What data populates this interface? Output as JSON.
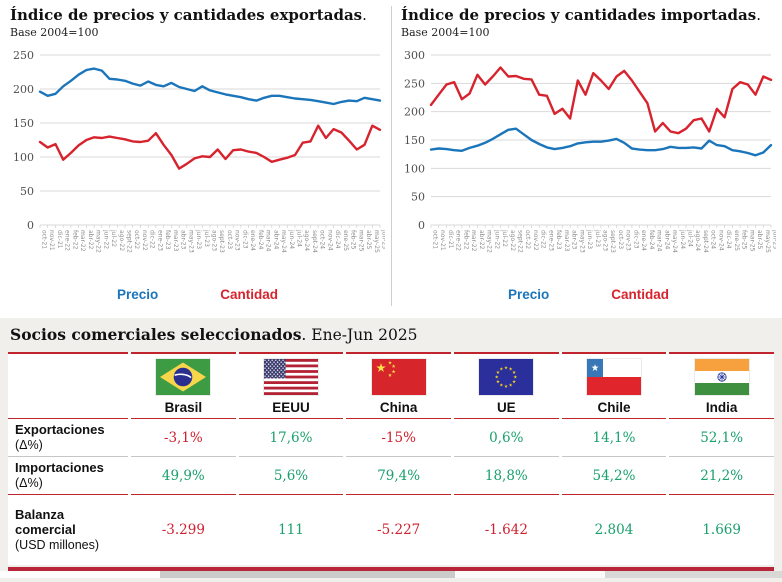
{
  "colors": {
    "precio_blue": "#1b75bb",
    "cantidad_red": "#d7232e",
    "positive_green": "#1aa06d",
    "negative_red": "#cf2130",
    "rule_red": "#c2242e",
    "bottom_bar_red": "#b82538",
    "section_background": "#f0efec"
  },
  "chart_data": [
    {
      "type": "line",
      "title": "Índice de precios y cantidades exportadas.",
      "title_bold": "Índice de precios y cantidades exportadas",
      "title_suffix": ".",
      "subtitle": "Base 2004=100",
      "ylim": [
        0,
        250
      ],
      "ytick": 50,
      "grid": true,
      "legend_position": "bottom",
      "categories": [
        "oct-21",
        "nov-21",
        "dic-21",
        "ene-22",
        "feb-22",
        "mar-22",
        "abr-22",
        "may-22",
        "jun-22",
        "jul-22",
        "ago-22",
        "sept-22",
        "oct-22",
        "nov-22",
        "dic-22",
        "ene-23",
        "feb-23",
        "mar-23",
        "abr-23",
        "may-23",
        "jun-23",
        "jul-23",
        "ago-23",
        "sept-23",
        "oct-23",
        "nov-23",
        "dic-23",
        "ene-24",
        "feb-24",
        "mar-24",
        "abr-24",
        "may-24",
        "jun-24",
        "jul-24",
        "ago-24",
        "sept-24",
        "oct-24",
        "nov-24",
        "dic-24",
        "ene-25",
        "feb-25",
        "mar-25",
        "abr-25",
        "may-25",
        "jun-25"
      ],
      "series": [
        {
          "name": "Precio",
          "color": "#1b75bb",
          "values": [
            196,
            190,
            193,
            204,
            212,
            221,
            228,
            230,
            227,
            215,
            214,
            212,
            208,
            205,
            211,
            206,
            204,
            209,
            203,
            200,
            197,
            204,
            198,
            195,
            192,
            190,
            188,
            185,
            183,
            187,
            190,
            190,
            188,
            186,
            185,
            184,
            182,
            180,
            178,
            181,
            183,
            182,
            187,
            185,
            183
          ]
        },
        {
          "name": "Cantidad",
          "color": "#d7232e",
          "values": [
            122,
            114,
            119,
            96,
            106,
            117,
            125,
            129,
            128,
            130,
            128,
            126,
            123,
            122,
            124,
            135,
            118,
            103,
            83,
            90,
            98,
            101,
            100,
            111,
            97,
            110,
            111,
            108,
            106,
            100,
            93,
            96,
            99,
            103,
            121,
            123,
            146,
            128,
            141,
            136,
            124,
            111,
            118,
            146,
            140
          ]
        }
      ]
    },
    {
      "type": "line",
      "title": "Índice de precios y cantidades importadas.",
      "title_bold": "Índice de precios y cantidades importadas",
      "title_suffix": ".",
      "subtitle": "Base 2004=100",
      "ylim": [
        0,
        300
      ],
      "ytick": 50,
      "grid": true,
      "legend_position": "bottom",
      "categories": [
        "oct-21",
        "nov-21",
        "dic-21",
        "ene-22",
        "feb-22",
        "mar-22",
        "abr-22",
        "may-22",
        "jun-22",
        "jul-22",
        "ago-22",
        "sept-22",
        "oct-22",
        "nov-22",
        "dic-22",
        "ene-23",
        "feb-23",
        "mar-23",
        "abr-23",
        "may-23",
        "jun-23",
        "jul-23",
        "ago-23",
        "sept-23",
        "oct-23",
        "nov-23",
        "dic-23",
        "ene-24",
        "feb-24",
        "mar-24",
        "abr-24",
        "may-24",
        "jun-24",
        "jul-24",
        "ago-24",
        "sept-24",
        "oct-24",
        "nov-24",
        "dic-24",
        "ene-25",
        "feb-25",
        "mar-25",
        "abr-25",
        "may-25",
        "jun-25"
      ],
      "series": [
        {
          "name": "Precio",
          "color": "#1b75bb",
          "values": [
            133,
            135,
            134,
            132,
            131,
            136,
            140,
            145,
            152,
            160,
            168,
            170,
            160,
            150,
            143,
            137,
            134,
            136,
            139,
            144,
            146,
            147,
            147,
            149,
            152,
            145,
            135,
            133,
            132,
            132,
            134,
            138,
            136,
            136,
            137,
            135,
            149,
            141,
            139,
            132,
            130,
            127,
            123,
            128,
            141
          ]
        },
        {
          "name": "Cantidad",
          "color": "#d7232e",
          "values": [
            212,
            230,
            248,
            252,
            222,
            232,
            265,
            248,
            262,
            278,
            262,
            263,
            258,
            257,
            230,
            228,
            196,
            205,
            188,
            255,
            230,
            268,
            255,
            240,
            262,
            272,
            255,
            235,
            215,
            165,
            180,
            165,
            162,
            170,
            185,
            188,
            165,
            205,
            190,
            240,
            252,
            248,
            230,
            262,
            256
          ]
        }
      ]
    }
  ],
  "partners": {
    "title_bold": "Socios comerciales seleccionados",
    "title_suffix": ". Ene-Jun 2025",
    "columns": [
      {
        "name": "Brasil"
      },
      {
        "name": "EEUU"
      },
      {
        "name": "China"
      },
      {
        "name": "UE"
      },
      {
        "name": "Chile"
      },
      {
        "name": "India"
      }
    ],
    "rows": [
      {
        "label": "Exportaciones",
        "sublabel": "(Δ%)",
        "values": [
          "-3,1%",
          "17,6%",
          "-15%",
          "0,6%",
          "14,1%",
          "52,1%"
        ]
      },
      {
        "label": "Importaciones",
        "sublabel": "(Δ%)",
        "values": [
          "49,9%",
          "5,6%",
          "79,4%",
          "18,8%",
          "54,2%",
          "21,2%"
        ]
      },
      {
        "label": "Balanza comercial",
        "sublabel": "(USD millones)",
        "values": [
          "-3.299",
          "111",
          "-5.227",
          "-1.642",
          "2.804",
          "1.669"
        ]
      }
    ]
  }
}
